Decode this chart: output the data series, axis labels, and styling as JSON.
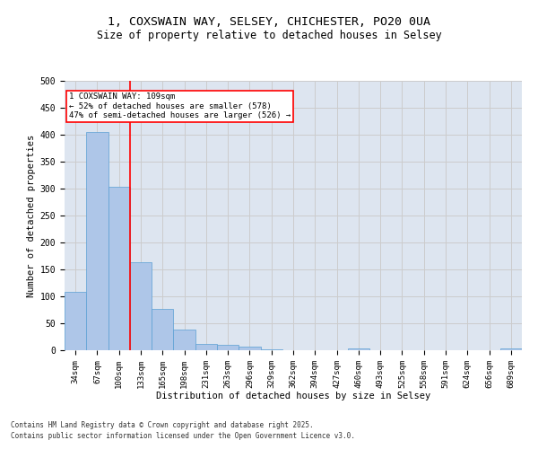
{
  "title_line1": "1, COXSWAIN WAY, SELSEY, CHICHESTER, PO20 0UA",
  "title_line2": "Size of property relative to detached houses in Selsey",
  "xlabel": "Distribution of detached houses by size in Selsey",
  "ylabel": "Number of detached properties",
  "categories": [
    "34sqm",
    "67sqm",
    "100sqm",
    "133sqm",
    "165sqm",
    "198sqm",
    "231sqm",
    "263sqm",
    "296sqm",
    "329sqm",
    "362sqm",
    "394sqm",
    "427sqm",
    "460sqm",
    "493sqm",
    "525sqm",
    "558sqm",
    "591sqm",
    "624sqm",
    "656sqm",
    "689sqm"
  ],
  "values": [
    108,
    405,
    303,
    164,
    76,
    38,
    12,
    10,
    6,
    2,
    0,
    0,
    0,
    4,
    0,
    0,
    0,
    0,
    0,
    0,
    4
  ],
  "bar_color": "#aec6e8",
  "bar_edge_color": "#5a9fd4",
  "redline_x": 2.5,
  "annotation_text": "1 COXSWAIN WAY: 109sqm\n← 52% of detached houses are smaller (578)\n47% of semi-detached houses are larger (526) →",
  "annotation_box_color": "white",
  "annotation_box_edge": "red",
  "redline_color": "red",
  "grid_color": "#cccccc",
  "background_color": "#dde5f0",
  "footer_line1": "Contains HM Land Registry data © Crown copyright and database right 2025.",
  "footer_line2": "Contains public sector information licensed under the Open Government Licence v3.0.",
  "ylim": [
    0,
    500
  ],
  "yticks": [
    0,
    50,
    100,
    150,
    200,
    250,
    300,
    350,
    400,
    450,
    500
  ]
}
